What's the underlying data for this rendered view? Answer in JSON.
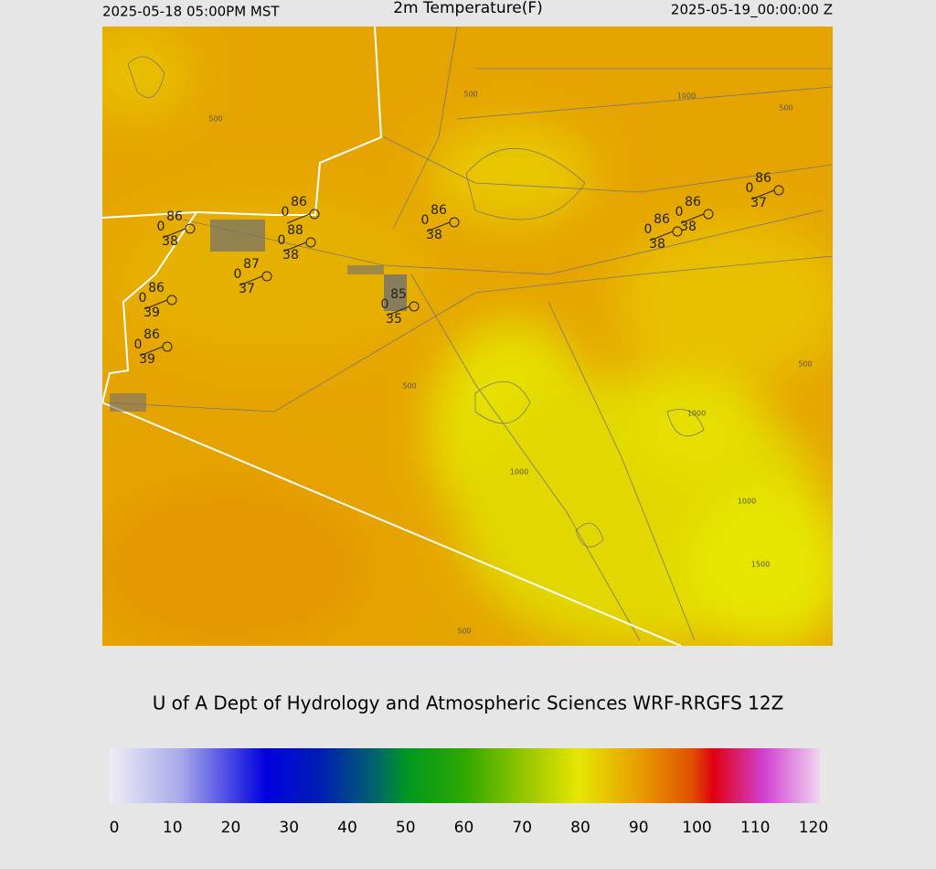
{
  "header": {
    "left": "2025-05-18 05:00PM MST",
    "title": "2m Temperature(F)",
    "right": "2025-05-19_00:00:00 Z"
  },
  "stations": [
    {
      "temp": 86,
      "wind": 0,
      "dew": 38
    },
    {
      "temp": 86,
      "wind": 0
    },
    {
      "temp": 88,
      "wind": 0,
      "dew": 38
    },
    {
      "temp": 87,
      "wind": 0,
      "dew": 37
    },
    {
      "temp": 85,
      "wind": 0,
      "dew": 35
    },
    {
      "temp": 86,
      "wind": 0,
      "dew": 38
    },
    {
      "temp": 86,
      "wind": 0,
      "dew": 39
    },
    {
      "temp": 86,
      "wind": 0,
      "dew": 39
    },
    {
      "temp": 86,
      "wind": 0,
      "dew": 38
    },
    {
      "temp": 86,
      "wind": 0,
      "dew": 38
    },
    {
      "temp": 86,
      "wind": 0,
      "dew": 37
    }
  ],
  "contour_labels": [
    500,
    500,
    1000,
    500,
    500,
    500,
    1000,
    1000,
    1000,
    1500,
    500
  ],
  "credit": "U of A Dept of Hydrology and Atmospheric Sciences WRF-RRGFS 12Z",
  "colorbar": {
    "ticks": [
      0,
      10,
      20,
      30,
      40,
      50,
      60,
      70,
      80,
      90,
      100,
      110,
      120
    ],
    "range": [
      0,
      120
    ]
  }
}
